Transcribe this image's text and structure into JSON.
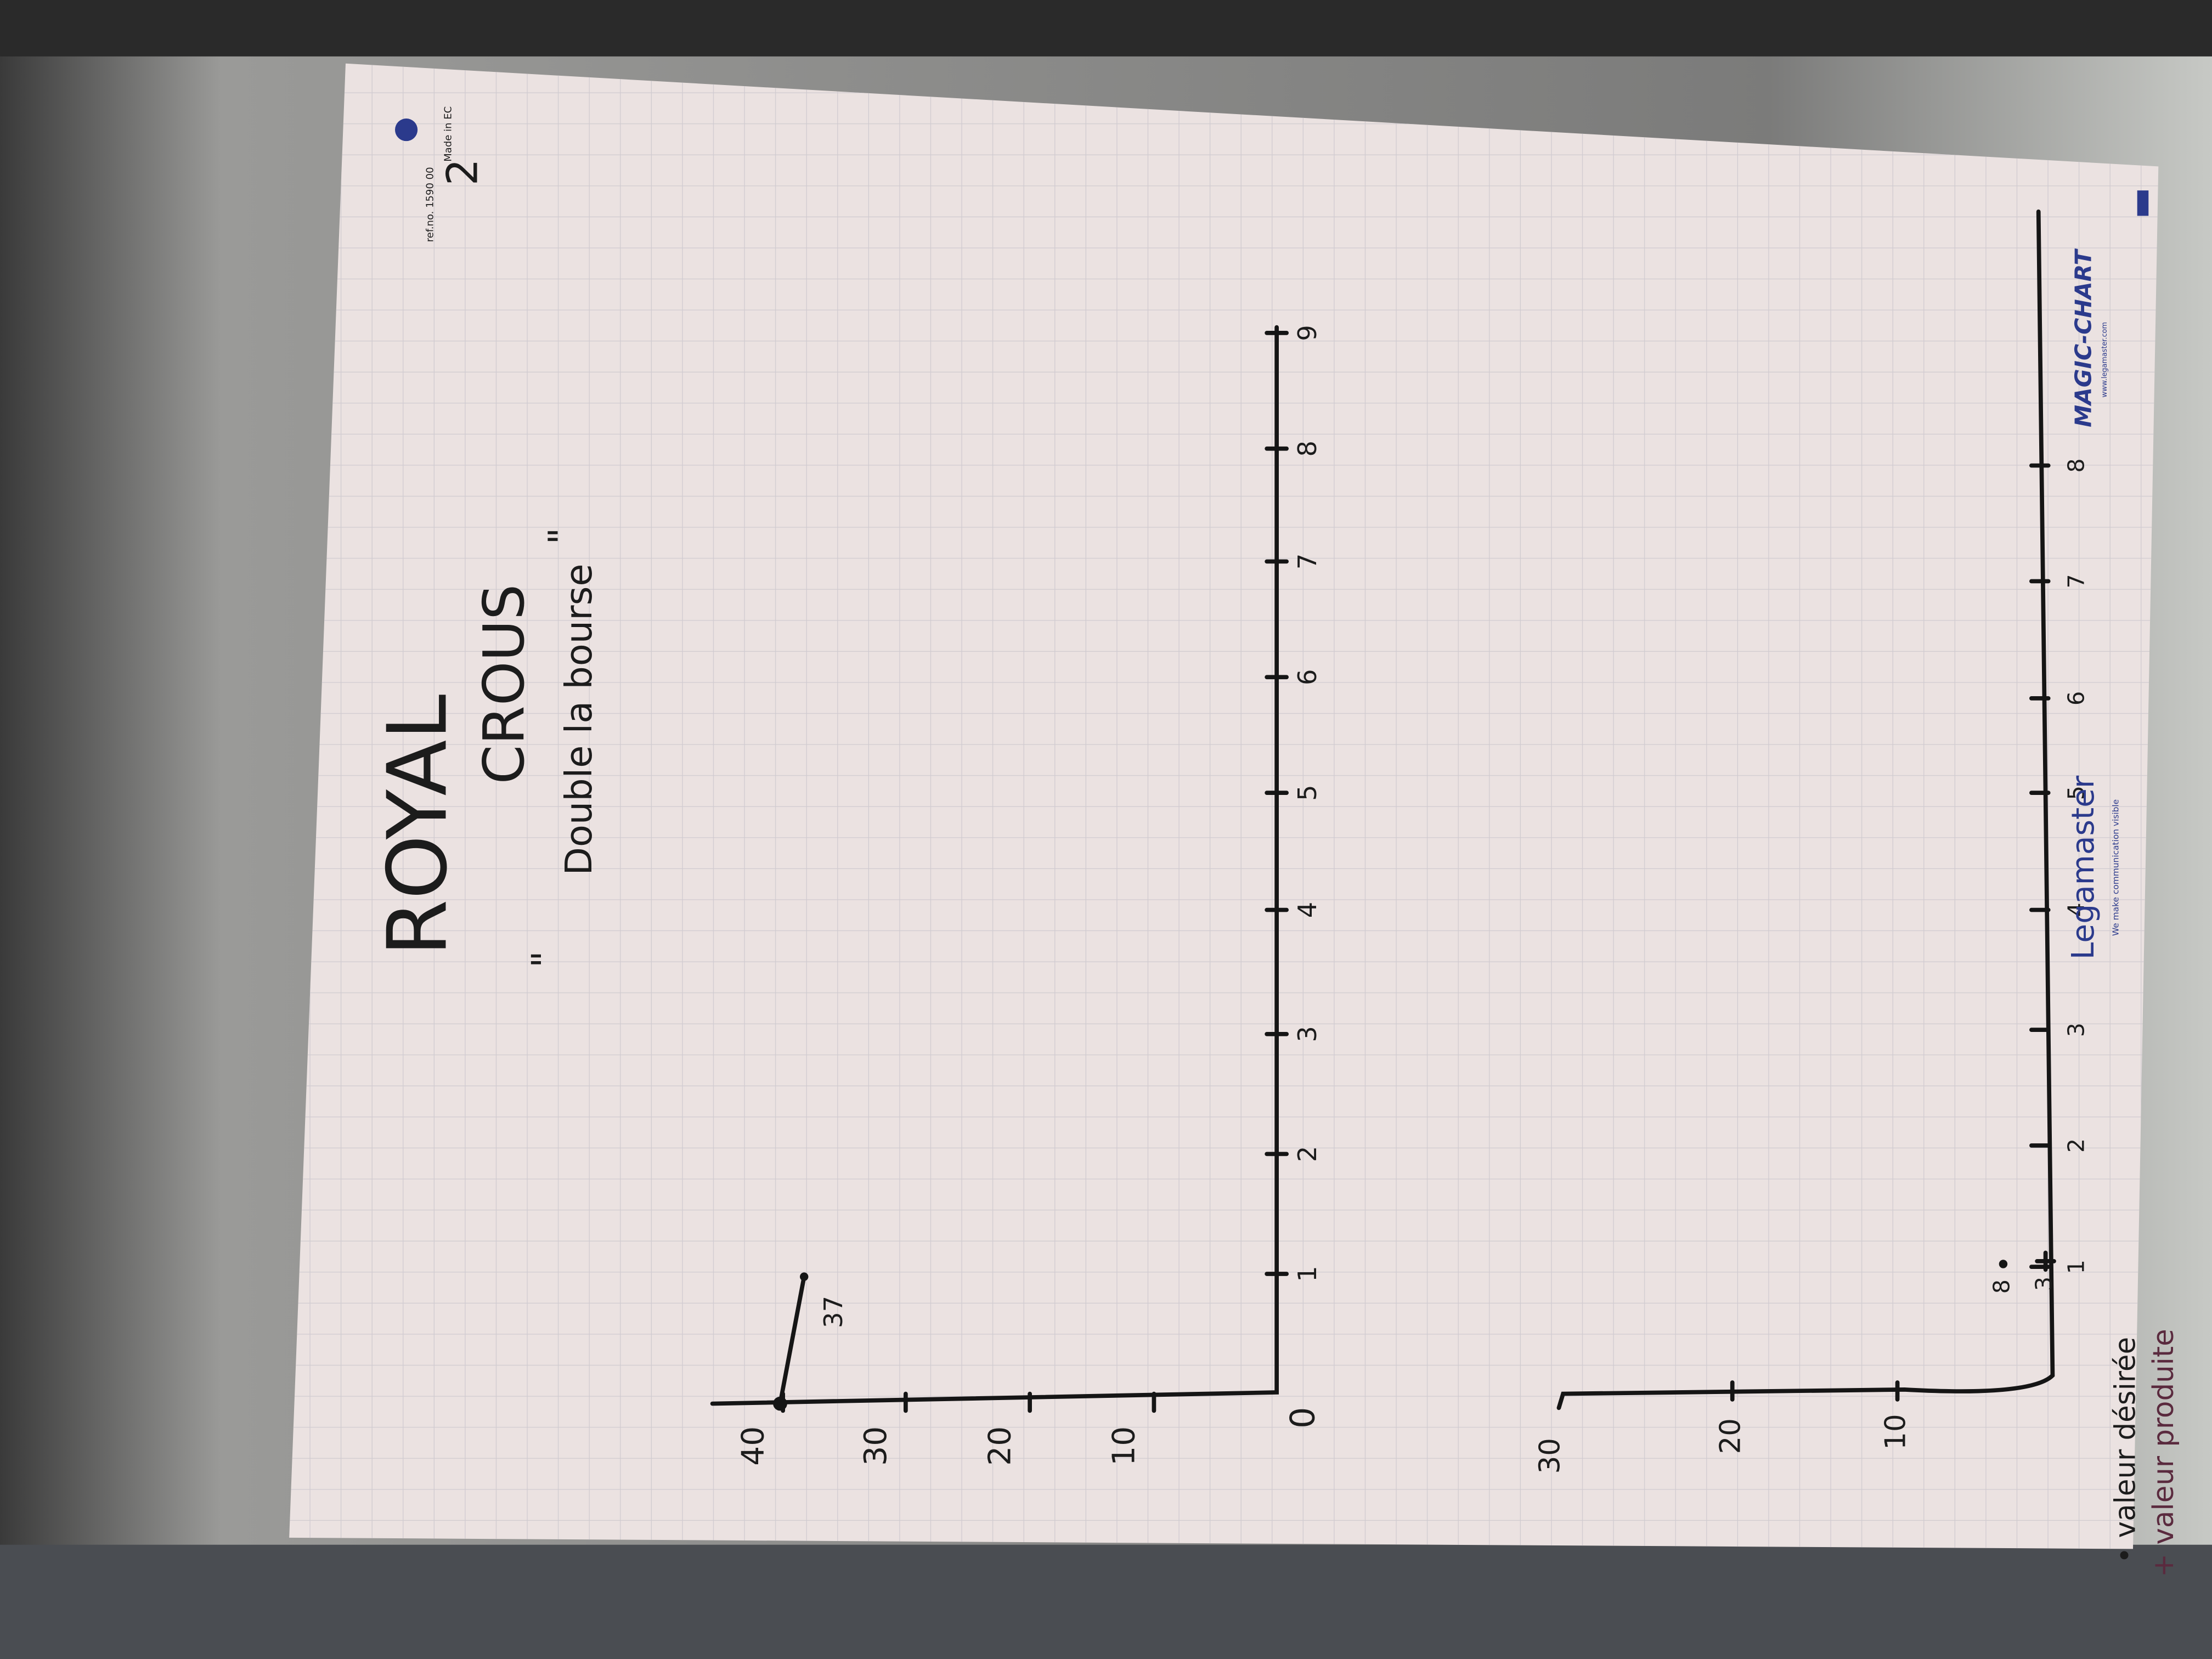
{
  "header": {
    "ref": "ref.no. 1590 00",
    "made_in": "Made in EC",
    "page": "2"
  },
  "title": {
    "line1": "ROYAL",
    "line2": "CROUS",
    "open_quote": "\"",
    "subtitle": "Double la bourse",
    "close_quote": "\""
  },
  "chart1": {
    "y_labels": [
      "40",
      "30",
      "20",
      "10"
    ],
    "origin": "0",
    "x_labels": [
      "1",
      "2",
      "3",
      "4",
      "5",
      "6",
      "7",
      "8",
      "9"
    ],
    "point_label": "37"
  },
  "chart2": {
    "y_labels": [
      "30",
      "20",
      "10"
    ],
    "x_labels": [
      "1",
      "2",
      "3",
      "4",
      "5",
      "6",
      "7",
      "8"
    ],
    "point_labels": [
      "8",
      "3"
    ]
  },
  "legend": [
    "• valeur désirée",
    "+ valeur produite"
  ],
  "branding": {
    "logo": "Legamaster",
    "tagline": "We make communication visible",
    "product": "MAGIC-CHART",
    "url": "www.legamaster.com"
  }
}
